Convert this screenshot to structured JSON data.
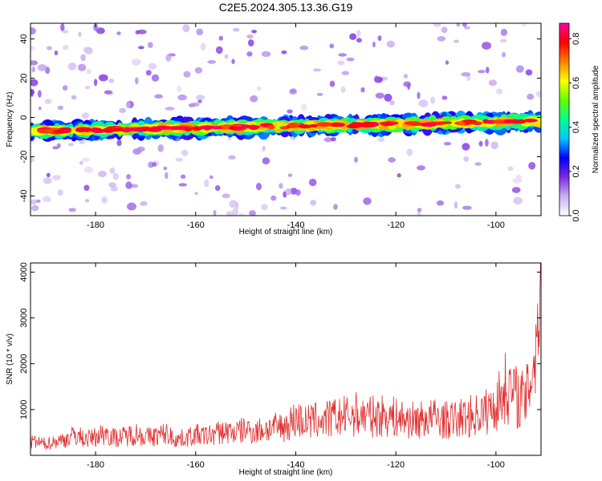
{
  "title": "C2E5.2024.305.13.36.G19",
  "colors": {
    "snr_line": "#e03030",
    "colormap": [
      "#ffffff",
      "#c9b0f0",
      "#7a2be0",
      "#0000ff",
      "#00c8ff",
      "#00ff90",
      "#60ff00",
      "#ffff00",
      "#ff8000",
      "#ff0000",
      "#ff00a0"
    ]
  },
  "chart_data": [
    {
      "type": "heatmap",
      "xlabel": "Height of straight line (km)",
      "ylabel": "Frequency (Hz)",
      "xlim": [
        -193,
        -91
      ],
      "ylim": [
        -50,
        48
      ],
      "x_ticks": [
        -180,
        -160,
        -140,
        -120,
        -100
      ],
      "y_ticks": [
        -40,
        -20,
        0,
        20,
        40
      ],
      "colorbar": {
        "label": "Normalized spectral amplitude",
        "range": [
          0,
          0.87
        ],
        "ticks": [
          0.0,
          0.2,
          0.4,
          0.6,
          0.8
        ],
        "tick_labels": [
          "0.0",
          "0.2",
          "0.4",
          "0.6",
          "0.8"
        ]
      },
      "ridge": {
        "x_start": -193,
        "x_end": -91,
        "freq_start_hz": -7,
        "freq_end_hz": -2,
        "peak_amplitude": 0.87
      },
      "grid": false
    },
    {
      "type": "line",
      "xlabel": "Height of straight line (km)",
      "ylabel": "SNR (10 * v/v)",
      "xlim": [
        -193,
        -91
      ],
      "ylim": [
        0,
        4200
      ],
      "x_ticks": [
        -180,
        -160,
        -140,
        -120,
        -100
      ],
      "y_ticks": [
        1000,
        2000,
        3000,
        4000
      ],
      "series": [
        {
          "x": [
            -193,
            -190,
            -188,
            -186,
            -184,
            -182,
            -180,
            -178,
            -176,
            -174,
            -172,
            -170,
            -168,
            -166,
            -164,
            -162,
            -160,
            -158,
            -156,
            -154,
            -152,
            -150,
            -148,
            -146,
            -144,
            -142,
            -140,
            -138,
            -136,
            -134,
            -132,
            -130,
            -128,
            -126,
            -124,
            -122,
            -120,
            -118,
            -116,
            -114,
            -112,
            -110,
            -108,
            -106,
            -104,
            -102,
            -100,
            -98,
            -96,
            -94,
            -92,
            -91
          ],
          "values": [
            300,
            250,
            300,
            350,
            450,
            350,
            400,
            500,
            380,
            420,
            480,
            400,
            420,
            480,
            350,
            380,
            450,
            420,
            480,
            520,
            500,
            560,
            520,
            580,
            600,
            640,
            800,
            720,
            760,
            780,
            820,
            850,
            900,
            860,
            840,
            880,
            820,
            780,
            760,
            800,
            820,
            760,
            780,
            840,
            880,
            950,
            1100,
            1500,
            1300,
            1200,
            2400,
            4100
          ]
        }
      ],
      "grid": false
    }
  ]
}
